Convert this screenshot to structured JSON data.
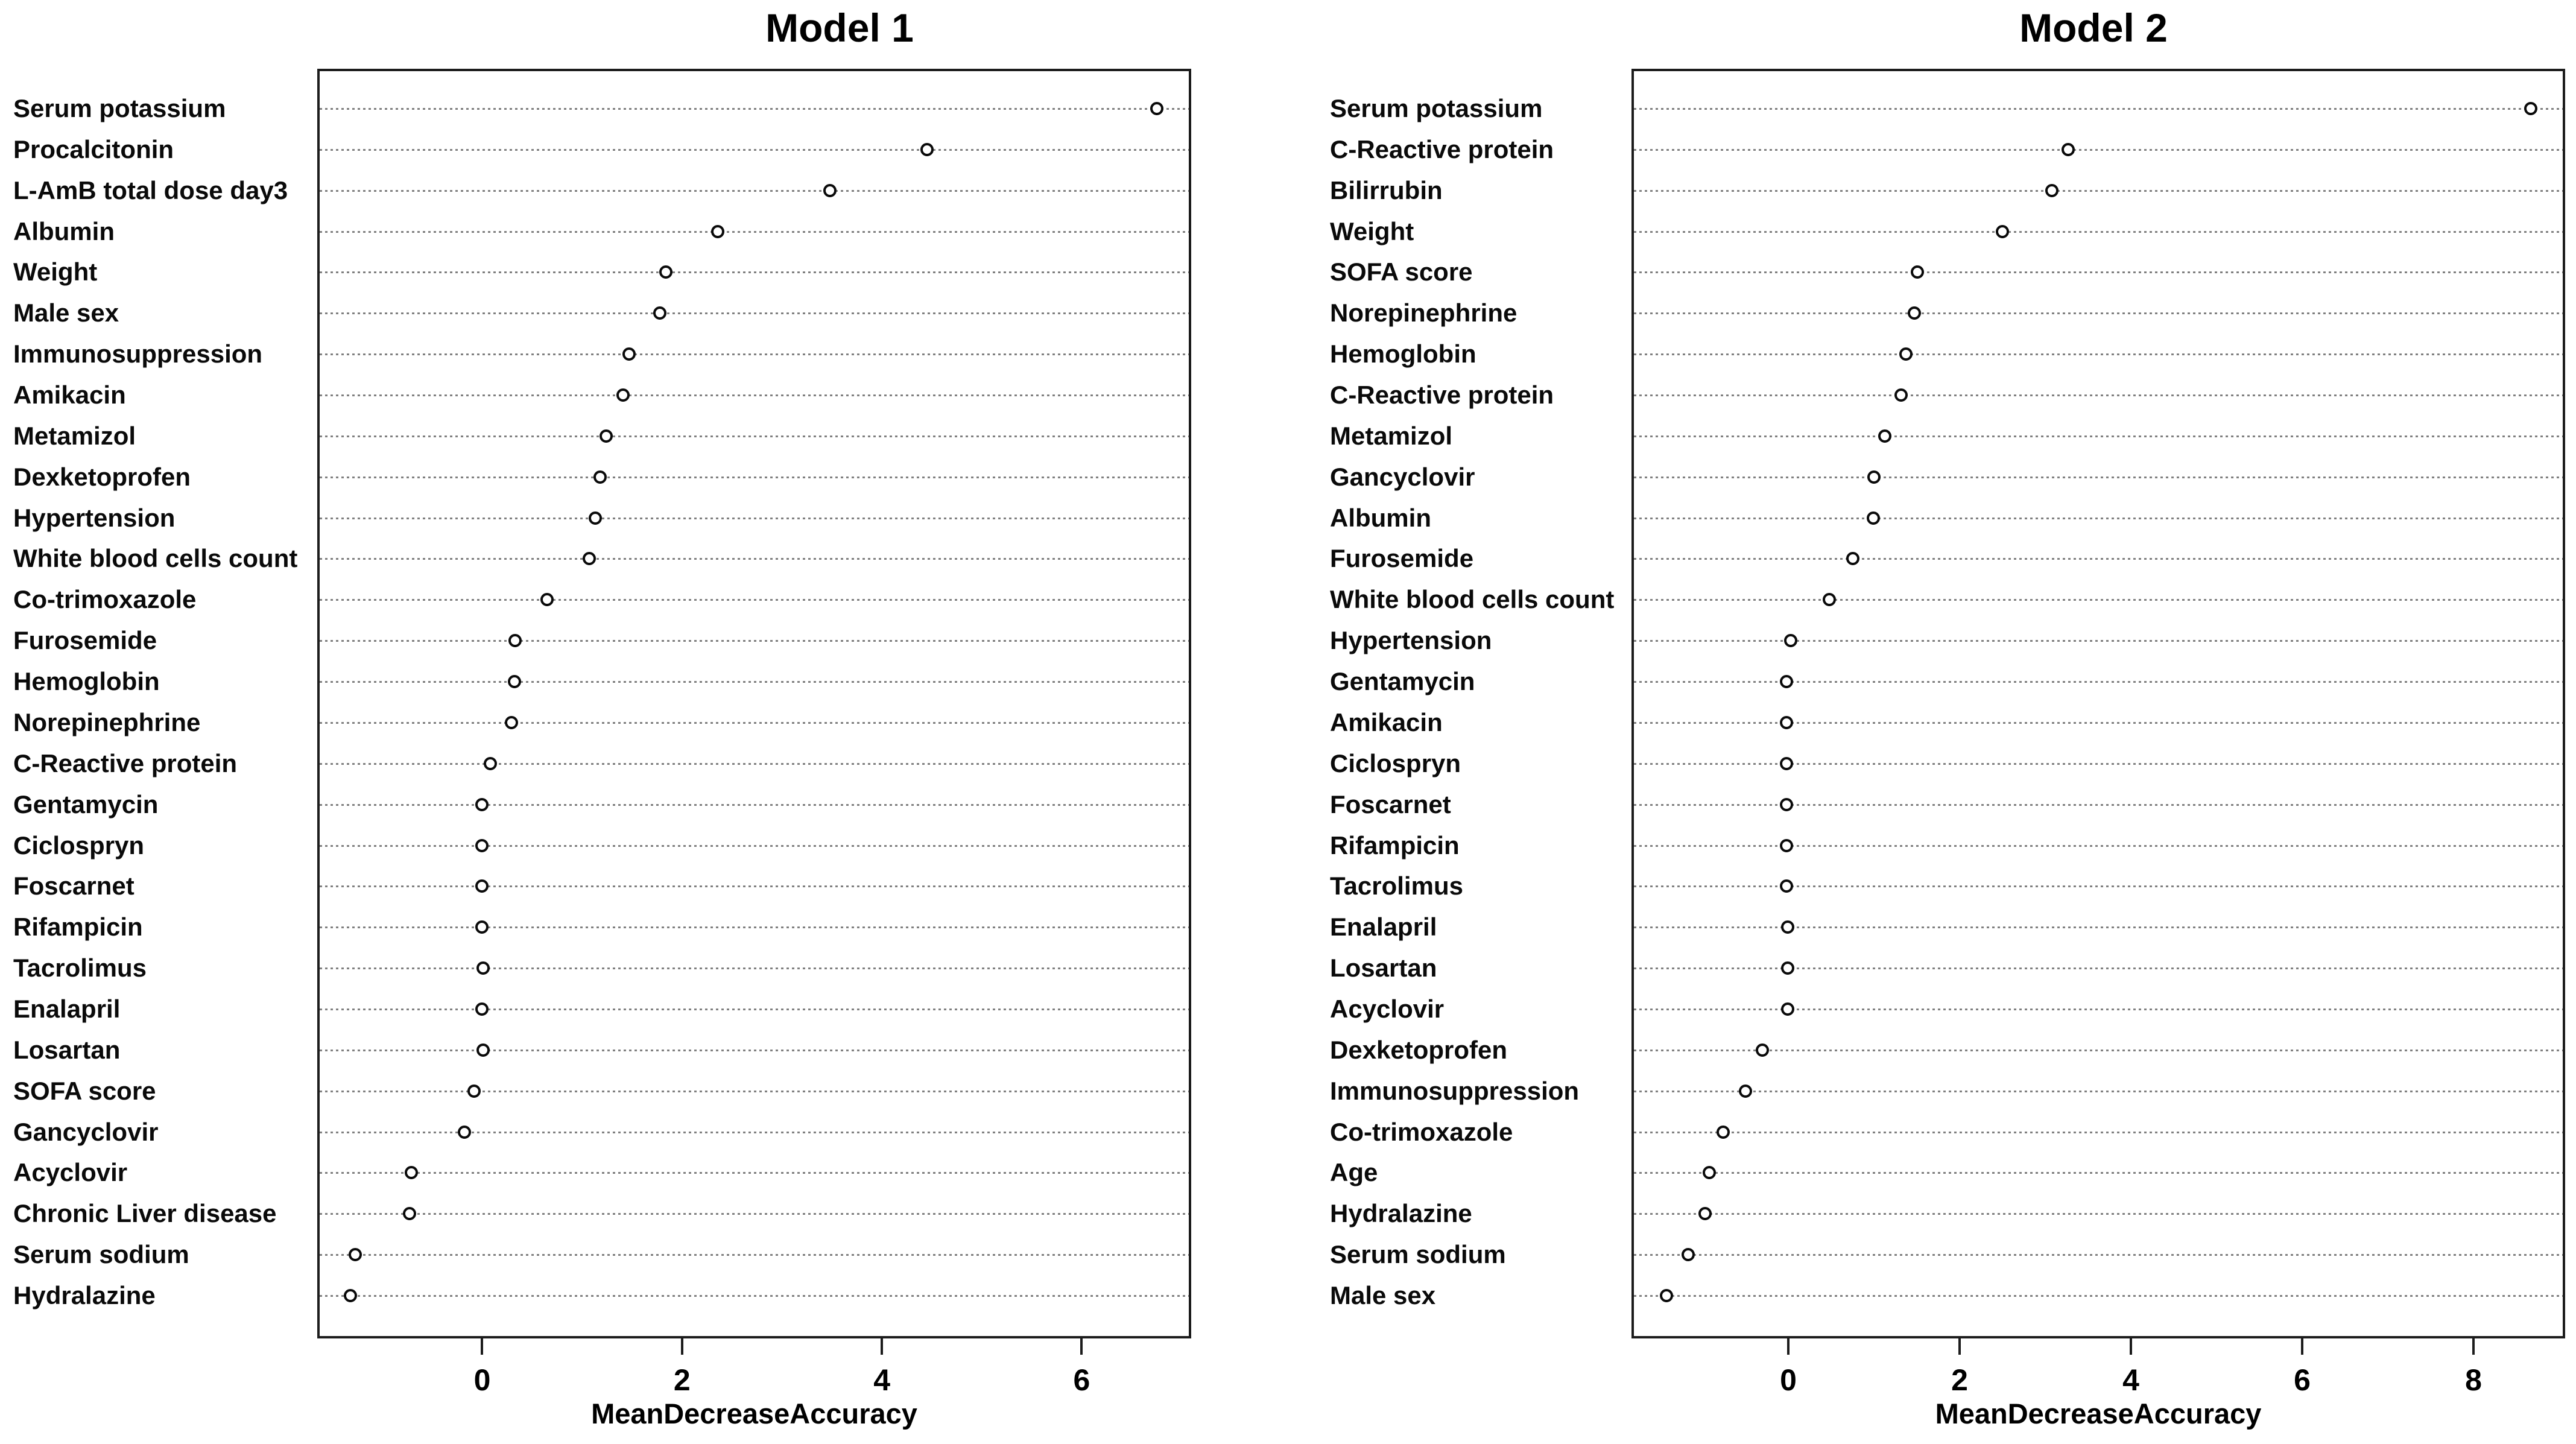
{
  "chart_data": [
    {
      "type": "scatter",
      "variant": "dot-plot-horizontal",
      "title": "Model 1",
      "xlabel": "MeanDecreaseAccuracy",
      "marker": "open-circle",
      "grid": "dotted-horizontal",
      "legend": "none",
      "xlim": [
        -1.651,
        7.096
      ],
      "xticks": [
        0,
        2,
        4,
        6
      ],
      "categories": [
        "Serum potassium",
        "Procalcitonin",
        "L-AmB total dose day3",
        "Albumin",
        "Weight",
        "Male sex",
        "Immunosuppression",
        "Amikacin",
        "Metamizol",
        "Dexketoprofen",
        "Hypertension",
        "White blood cells count",
        "Co-trimoxazole",
        "Furosemide",
        "Hemoglobin",
        "Norepinephrine",
        "C-Reactive protein",
        "Gentamycin",
        "Ciclospryn",
        "Foscarnet",
        "Rifampicin",
        "Tacrolimus",
        "Enalapril",
        "Losartan",
        "SOFA score",
        "Gancyclovir",
        "Acyclovir",
        "Chronic Liver disease",
        "Serum sodium",
        "Hydralazine"
      ],
      "values": [
        6.75,
        4.45,
        3.48,
        2.36,
        1.84,
        1.78,
        1.47,
        1.41,
        1.24,
        1.18,
        1.13,
        1.07,
        0.65,
        0.33,
        0.32,
        0.29,
        0.08,
        0.0,
        0.0,
        0.0,
        0.0,
        0.01,
        0.0,
        0.01,
        -0.08,
        -0.18,
        -0.71,
        -0.73,
        -1.27,
        -1.32
      ]
    },
    {
      "type": "scatter",
      "variant": "dot-plot-horizontal",
      "title": "Model 2",
      "xlabel": "MeanDecreaseAccuracy",
      "marker": "open-circle",
      "grid": "dotted-horizontal",
      "legend": "none",
      "xlim": [
        -1.831,
        9.07
      ],
      "xticks": [
        0,
        2,
        4,
        6,
        8
      ],
      "categories": [
        "Serum potassium",
        "C-Reactive protein",
        "Bilirrubin",
        "Weight",
        "SOFA score",
        "Norepinephrine",
        "Hemoglobin",
        "C-Reactive protein",
        "Metamizol",
        "Gancyclovir",
        "Albumin",
        "Furosemide",
        "White blood cells count",
        "Hypertension",
        "Gentamycin",
        "Amikacin",
        "Ciclospryn",
        "Foscarnet",
        "Rifampicin",
        "Tacrolimus",
        "Enalapril",
        "Losartan",
        "Acyclovir",
        "Dexketoprofen",
        "Immunosuppression",
        "Co-trimoxazole",
        "Age",
        "Hydralazine",
        "Serum sodium",
        "Male sex"
      ],
      "values": [
        8.67,
        3.27,
        3.08,
        2.5,
        1.51,
        1.47,
        1.37,
        1.32,
        1.13,
        1.0,
        0.99,
        0.75,
        0.48,
        0.03,
        -0.02,
        -0.02,
        -0.02,
        -0.02,
        -0.02,
        -0.02,
        -0.01,
        -0.01,
        -0.01,
        -0.3,
        -0.5,
        -0.76,
        -0.92,
        -0.97,
        -1.17,
        -1.42
      ]
    }
  ],
  "style": {
    "marker_color": "#0a0a0a",
    "grid_color": "#7f7f7f",
    "box_color": "#1c1c1c",
    "background": "#ffffff"
  }
}
